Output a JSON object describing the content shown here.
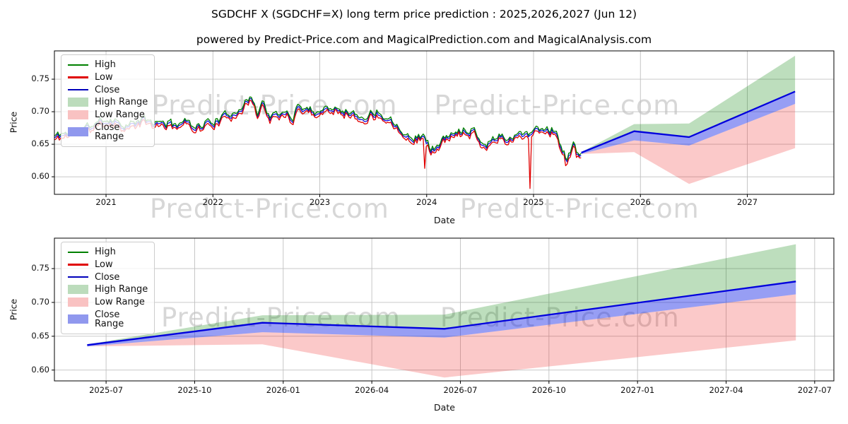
{
  "title": "SGDCHF X (SGDCHF=X) long term price prediction : 2025,2026,2027 (Jun 12)",
  "subtitle": "powered by Predict-Price.com and MagicalPrediction.com and MagicalAnalysis.com",
  "watermark": {
    "text": "Predict-Price.com"
  },
  "colors": {
    "high_line": "#008000",
    "low_line": "#e00000",
    "close_line": "#0000dd",
    "high_fill": "rgba(0,128,0,0.26)",
    "low_fill": "rgba(240,30,30,0.24)",
    "close_fill": "rgba(25,40,230,0.45)",
    "grid": "#c0c0c0",
    "spine": "#000000"
  },
  "legend": {
    "items": [
      {
        "label": "High",
        "swatch": "line",
        "color": "#008000"
      },
      {
        "label": "Low",
        "swatch": "line",
        "color": "#e00000"
      },
      {
        "label": "Close",
        "swatch": "line",
        "color": "#0000bb"
      },
      {
        "label": "High Range",
        "swatch": "patch",
        "color": "#bcdcbc"
      },
      {
        "label": "Low Range",
        "swatch": "patch",
        "color": "#f9c2c2"
      },
      {
        "label": "Close Range",
        "swatch": "patch",
        "color": "#9098ee"
      }
    ]
  },
  "chart_data": [
    {
      "id": "history-with-forecast",
      "type": "line",
      "xlabel": "Date",
      "ylabel": "Price",
      "x_ticks": [
        2021,
        2022,
        2023,
        2024,
        2025,
        2026,
        2027
      ],
      "y_ticks": [
        0.6,
        0.65,
        0.7,
        0.75
      ],
      "xlim_years": [
        2020.517,
        2027.81
      ],
      "ylim": [
        0.573,
        0.7935
      ],
      "grid": true,
      "legend_position": "upper-left",
      "series_names": [
        "High",
        "Low",
        "Close",
        "High Range",
        "Low Range",
        "Close Range"
      ],
      "history": {
        "x_years": [
          2020.52,
          2020.62,
          2020.71,
          2020.79,
          2020.87,
          2020.96,
          2021.04,
          2021.12,
          2021.21,
          2021.29,
          2021.37,
          2021.46,
          2021.54,
          2021.62,
          2021.71,
          2021.79,
          2021.87,
          2021.96,
          2022.04,
          2022.12,
          2022.21,
          2022.29,
          2022.37,
          2022.42,
          2022.46,
          2022.54,
          2022.62,
          2022.71,
          2022.75,
          2022.79,
          2022.87,
          2022.96,
          2023.04,
          2023.12,
          2023.21,
          2023.29,
          2023.37,
          2023.46,
          2023.54,
          2023.62,
          2023.71,
          2023.79,
          2023.87,
          2023.96,
          2024.04,
          2024.12,
          2024.21,
          2024.29,
          2024.37,
          2024.46,
          2024.54,
          2024.62,
          2024.71,
          2024.79,
          2024.87,
          2024.96,
          2025.04,
          2025.12,
          2025.21,
          2025.27,
          2025.31,
          2025.37,
          2025.41,
          2025.445
        ],
        "close": [
          0.66,
          0.665,
          0.669,
          0.671,
          0.677,
          0.684,
          0.687,
          0.682,
          0.676,
          0.682,
          0.685,
          0.679,
          0.682,
          0.678,
          0.683,
          0.681,
          0.676,
          0.682,
          0.685,
          0.69,
          0.7,
          0.71,
          0.719,
          0.697,
          0.713,
          0.69,
          0.692,
          0.698,
          0.688,
          0.707,
          0.704,
          0.699,
          0.701,
          0.708,
          0.703,
          0.697,
          0.688,
          0.694,
          0.699,
          0.691,
          0.681,
          0.668,
          0.656,
          0.664,
          0.64,
          0.649,
          0.661,
          0.666,
          0.673,
          0.669,
          0.645,
          0.658,
          0.661,
          0.657,
          0.664,
          0.667,
          0.671,
          0.674,
          0.669,
          0.64,
          0.624,
          0.646,
          0.633,
          0.637
        ],
        "hl_spread": 0.006,
        "noise_amp": 0.011,
        "spikes": [
          {
            "x_year": 2023.985,
            "low": 0.613
          },
          {
            "x_year": 2024.962,
            "low": 0.582
          },
          {
            "x_year": 2025.295,
            "low": 0.617
          }
        ]
      }
    },
    {
      "id": "forecast-detail",
      "type": "area",
      "xlabel": "Date",
      "ylabel": "Price",
      "x_ticks": [
        "2025-07",
        "2025-10",
        "2026-01",
        "2026-04",
        "2026-07",
        "2026-10",
        "2027-01",
        "2027-04",
        "2027-07"
      ],
      "y_ticks": [
        0.6,
        0.65,
        0.7,
        0.75
      ],
      "xlim_months_from_2025_07": [
        -1.75,
        24.65
      ],
      "ylim": [
        0.584,
        0.795
      ],
      "grid": true,
      "legend_position": "upper-left",
      "series_names": [
        "High",
        "Low",
        "Close",
        "High Range",
        "Low Range",
        "Close Range"
      ]
    }
  ],
  "forecast": {
    "note": "shared prediction series drawn on both charts; bands: high_range=[close,high], low_range=[low,close_low], close_range=[close_low,close]",
    "points": [
      {
        "date": "2025-06-12",
        "close": 0.637,
        "high": 0.638,
        "low": 0.635,
        "close_low": 0.635
      },
      {
        "date": "2025-12-10",
        "close": 0.67,
        "high": 0.681,
        "low": 0.638,
        "close_low": 0.656
      },
      {
        "date": "2026-06-15",
        "close": 0.661,
        "high": 0.682,
        "low": 0.589,
        "close_low": 0.648
      },
      {
        "date": "2027-06-12",
        "close": 0.731,
        "high": 0.786,
        "low": 0.644,
        "close_low": 0.712
      }
    ]
  }
}
